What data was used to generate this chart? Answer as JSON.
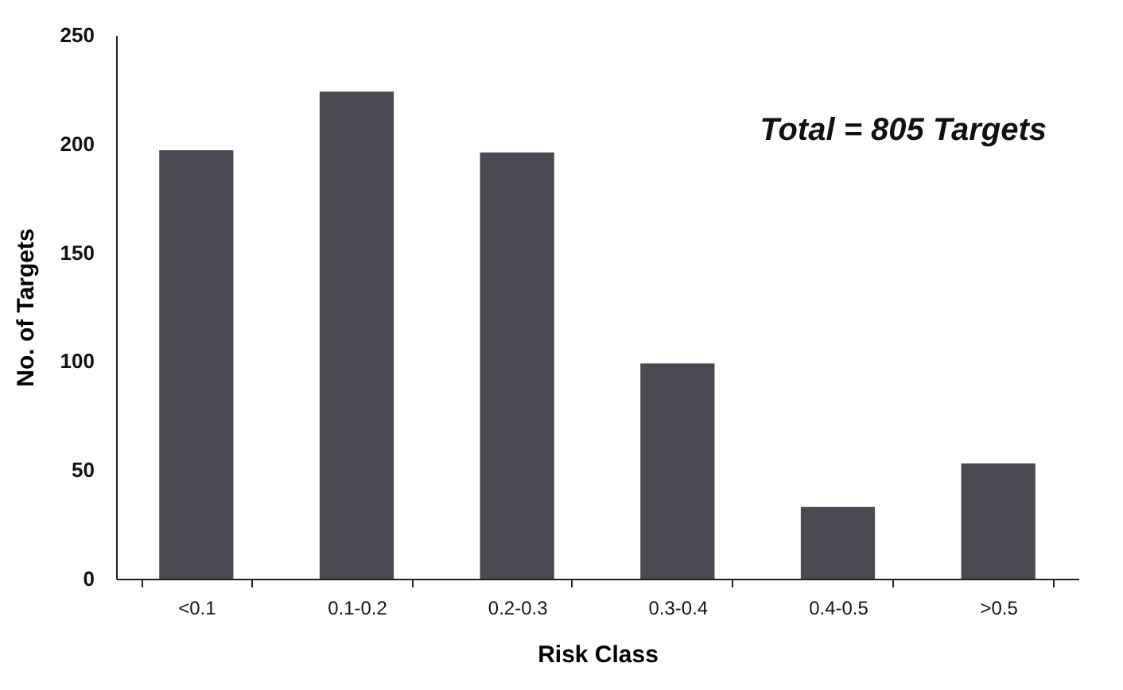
{
  "chart_data": {
    "type": "bar",
    "xlabel": "Risk Class",
    "ylabel": "No. of Targets",
    "categories": [
      "<0.1",
      "0.1-0.2",
      "0.2-0.3",
      "0.3-0.4",
      "0.4-0.5",
      ">0.5"
    ],
    "values": [
      197,
      224,
      196,
      99,
      33,
      53
    ],
    "color": "#4a4a52",
    "ylim": [
      0,
      250
    ],
    "yticks": [
      0,
      50,
      100,
      150,
      200,
      250
    ],
    "annotations": [
      "Total = 805 Targets"
    ]
  }
}
